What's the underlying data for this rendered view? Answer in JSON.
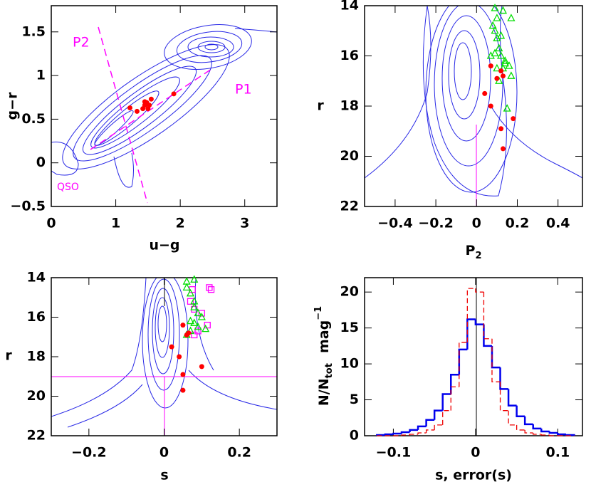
{
  "chart_data": [
    {
      "type": "scatter",
      "xlabel": "u−g",
      "ylabel": "g−r",
      "annotations": [
        "P1",
        "P2",
        "QSO"
      ],
      "xlim": [
        0,
        3.5
      ],
      "ylim": [
        -0.5,
        1.8
      ],
      "xticks": [
        0,
        1,
        2,
        3
      ],
      "yticks": [
        {
          "value": -0.5,
          "label": "−0.5"
        },
        0,
        0.5,
        1,
        1.5
      ],
      "series": [
        {
          "color": "#ff0000",
          "marker": "circle",
          "x": [
            1.22,
            1.33,
            1.42,
            1.45,
            1.48,
            1.5,
            1.55,
            1.9,
            1.45,
            1.52
          ],
          "y": [
            0.63,
            0.59,
            0.62,
            0.66,
            0.69,
            0.62,
            0.73,
            0.79,
            0.7,
            0.66
          ]
        }
      ]
    },
    {
      "type": "scatter",
      "xlabel": "P",
      "xlabel_sub": "2",
      "ylabel": "r",
      "xlim": [
        -0.55,
        0.52
      ],
      "ylim": [
        22,
        14
      ],
      "xticks": [
        {
          "value": -0.4,
          "label": "−0.4"
        },
        {
          "value": -0.2,
          "label": "−0.2"
        },
        0,
        0.2,
        0.4
      ],
      "yticks": [
        14,
        16,
        18,
        20,
        22
      ],
      "series": [
        {
          "color": "#00dd00",
          "marker": "triangle",
          "x": [
            0.09,
            0.1,
            0.08,
            0.09,
            0.1,
            0.11,
            0.13,
            0.17,
            0.09,
            0.12,
            0.14,
            0.1,
            0.13,
            0.16,
            0.17,
            0.11,
            0.15,
            0.14,
            0.12,
            0.07
          ],
          "y": [
            14.1,
            14.5,
            14.8,
            15.0,
            15.3,
            15.7,
            14.2,
            14.5,
            15.9,
            16.0,
            16.2,
            16.5,
            16.5,
            16.4,
            16.8,
            17.0,
            18.1,
            16.3,
            15.2,
            16.0
          ]
        },
        {
          "color": "#ff0000",
          "marker": "circle",
          "x": [
            0.04,
            0.07,
            0.1,
            0.12,
            0.13,
            0.07,
            0.18,
            0.12,
            0.13
          ],
          "y": [
            17.5,
            16.4,
            16.9,
            16.6,
            16.8,
            18.0,
            18.5,
            18.9,
            19.7
          ]
        }
      ]
    },
    {
      "type": "scatter",
      "xlabel": "s",
      "ylabel": "r",
      "xlim": [
        -0.3,
        0.3
      ],
      "ylim": [
        22,
        14
      ],
      "xticks": [
        {
          "value": -0.2,
          "label": "−0.2"
        },
        0,
        0.2
      ],
      "yticks": [
        14,
        16,
        18,
        20,
        22
      ],
      "series": [
        {
          "color": "#ff00ff",
          "marker": "square",
          "x": [
            0.075,
            0.12,
            0.125,
            0.07,
            0.08,
            0.1,
            0.115,
            0.09,
            0.08
          ],
          "y": [
            14.6,
            14.5,
            14.6,
            15.2,
            15.6,
            15.8,
            16.4,
            16.7,
            16.9
          ]
        },
        {
          "color": "#00dd00",
          "marker": "triangle",
          "x": [
            0.06,
            0.08,
            0.06,
            0.07,
            0.08,
            0.08,
            0.09,
            0.07,
            0.09,
            0.11,
            0.07,
            0.06,
            0.08,
            0.1
          ],
          "y": [
            14.2,
            14.1,
            14.5,
            14.8,
            15.2,
            15.5,
            15.8,
            16.2,
            16.5,
            16.6,
            16.7,
            16.9,
            16.3,
            16.0
          ]
        },
        {
          "color": "#ff0000",
          "marker": "circle",
          "x": [
            0.05,
            0.065,
            0.02,
            0.04,
            0.05,
            0.1,
            0.05,
            0.06
          ],
          "y": [
            16.4,
            16.8,
            17.5,
            18.0,
            18.9,
            18.5,
            19.7,
            16.9
          ]
        }
      ]
    },
    {
      "type": "histogram",
      "xlabel": "s, error(s)",
      "ylabel": "N/N",
      "ylabel_sub": "tot",
      "ylabel_unit": "mag",
      "ylabel_sup": "−1",
      "xlim": [
        -0.135,
        0.13
      ],
      "ylim": [
        0,
        22
      ],
      "xticks": [
        {
          "value": -0.1,
          "label": "−0.1"
        },
        0,
        0.1
      ],
      "yticks": [
        0,
        5,
        10,
        15,
        20
      ],
      "bins": [
        -0.12,
        -0.11,
        -0.1,
        -0.09,
        -0.08,
        -0.07,
        -0.06,
        -0.05,
        -0.04,
        -0.03,
        -0.02,
        -0.01,
        0,
        0.01,
        0.02,
        0.03,
        0.04,
        0.05,
        0.06,
        0.07,
        0.08,
        0.09,
        0.1,
        0.11,
        0.12
      ],
      "series": [
        {
          "color": "#0000ee",
          "dashed": false,
          "values": [
            0.1,
            0.2,
            0.3,
            0.5,
            0.8,
            1.3,
            2.2,
            3.5,
            5.8,
            8.5,
            12,
            16.2,
            15.5,
            12.5,
            9.5,
            6.5,
            4.2,
            2.7,
            1.6,
            1.0,
            0.6,
            0.4,
            0.2,
            0.1
          ]
        },
        {
          "color": "#ee0000",
          "dashed": true,
          "values": [
            0,
            0,
            0,
            0.1,
            0.2,
            0.4,
            0.8,
            1.5,
            3.5,
            6.8,
            13,
            20.5,
            20,
            13.5,
            7.5,
            3.5,
            1.5,
            0.8,
            0.4,
            0.2,
            0.1,
            0,
            0,
            0
          ]
        }
      ]
    }
  ]
}
